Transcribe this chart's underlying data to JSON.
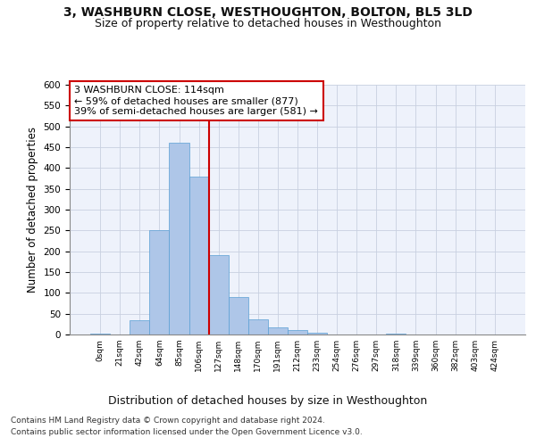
{
  "title1": "3, WASHBURN CLOSE, WESTHOUGHTON, BOLTON, BL5 3LD",
  "title2": "Size of property relative to detached houses in Westhoughton",
  "xlabel": "Distribution of detached houses by size in Westhoughton",
  "ylabel": "Number of detached properties",
  "bar_categories": [
    "0sqm",
    "21sqm",
    "42sqm",
    "64sqm",
    "85sqm",
    "106sqm",
    "127sqm",
    "148sqm",
    "170sqm",
    "191sqm",
    "212sqm",
    "233sqm",
    "254sqm",
    "276sqm",
    "297sqm",
    "318sqm",
    "339sqm",
    "360sqm",
    "382sqm",
    "403sqm",
    "424sqm"
  ],
  "bar_values": [
    3,
    0,
    35,
    250,
    460,
    380,
    190,
    90,
    37,
    18,
    11,
    4,
    1,
    0,
    0,
    2,
    0,
    0,
    0,
    0,
    1
  ],
  "bar_color": "#aec6e8",
  "bar_edge_color": "#5a9fd4",
  "vline_x": 5.5,
  "vline_color": "#cc0000",
  "annotation_text": "3 WASHBURN CLOSE: 114sqm\n← 59% of detached houses are smaller (877)\n39% of semi-detached houses are larger (581) →",
  "annotation_box_color": "#ffffff",
  "annotation_box_edge": "#cc0000",
  "ylim": [
    0,
    600
  ],
  "yticks": [
    0,
    50,
    100,
    150,
    200,
    250,
    300,
    350,
    400,
    450,
    500,
    550,
    600
  ],
  "footer_line1": "Contains HM Land Registry data © Crown copyright and database right 2024.",
  "footer_line2": "Contains public sector information licensed under the Open Government Licence v3.0.",
  "bg_color": "#eef2fb",
  "title1_fontsize": 10,
  "title2_fontsize": 9,
  "xlabel_fontsize": 9,
  "ylabel_fontsize": 8.5,
  "annotation_fontsize": 8,
  "footer_fontsize": 6.5
}
